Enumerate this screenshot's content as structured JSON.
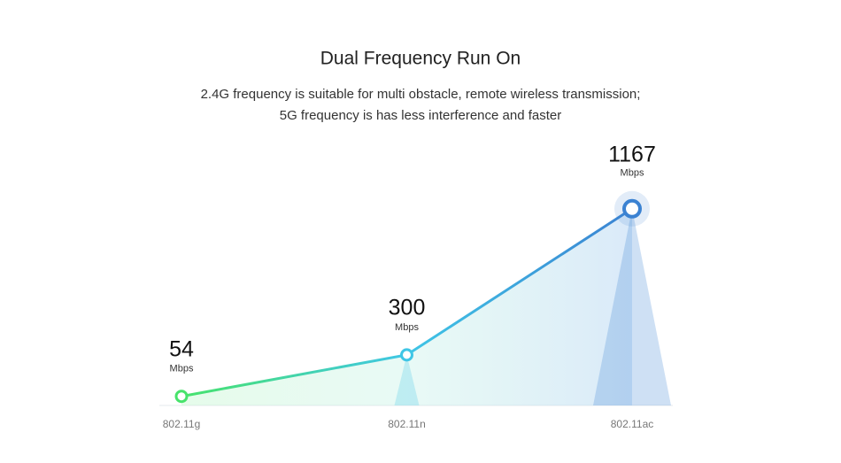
{
  "chart_data": {
    "type": "line",
    "title": "Dual Frequency Run On",
    "subtitle": [
      "2.4G frequency is suitable for multi obstacle, remote wireless transmission;",
      "5G frequency is has less interference and faster"
    ],
    "categories": [
      "802.11g",
      "802.11n",
      "802.11ac"
    ],
    "values": [
      54,
      300,
      1167
    ],
    "unit": "Mbps",
    "colors": [
      "#47e36b",
      "#3fc6e6",
      "#3b82d2"
    ],
    "ylim": [
      0,
      1250
    ]
  }
}
